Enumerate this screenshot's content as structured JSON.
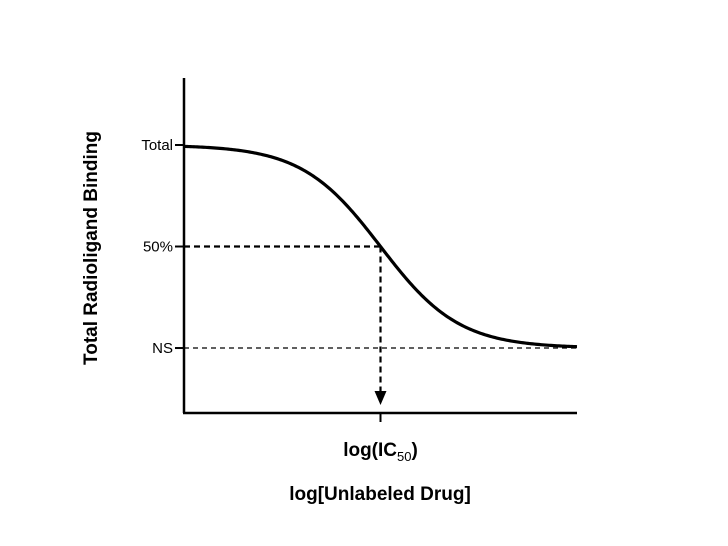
{
  "chart_data": {
    "type": "line",
    "title": "",
    "xlabel": "log[Unlabeled Drug]",
    "ylabel": "Total Radioligand Binding",
    "y_ticks": [
      {
        "label": "Total",
        "value": 100
      },
      {
        "label": "50%",
        "value": 50
      },
      {
        "label": "NS",
        "value": 0
      }
    ],
    "x_ticks": [
      {
        "label_main": "log(IC",
        "label_sub": "50",
        "label_end": ")",
        "value": 0
      }
    ],
    "xlim": [
      -5,
      5
    ],
    "ylim": [
      -32,
      133
    ],
    "curve": {
      "model": "sigmoid",
      "top": 100,
      "bottom": 0,
      "midpoint_x": 0,
      "slope": 1,
      "x_start": -5,
      "x_end": 5
    },
    "annotations": {
      "half_max_guide": "dashed line from y-axis at 50% to curve, then dashed arrow down to x-axis",
      "ns_guide": "dashed line at NS level across the chart"
    },
    "grid": false,
    "legend": "none"
  }
}
